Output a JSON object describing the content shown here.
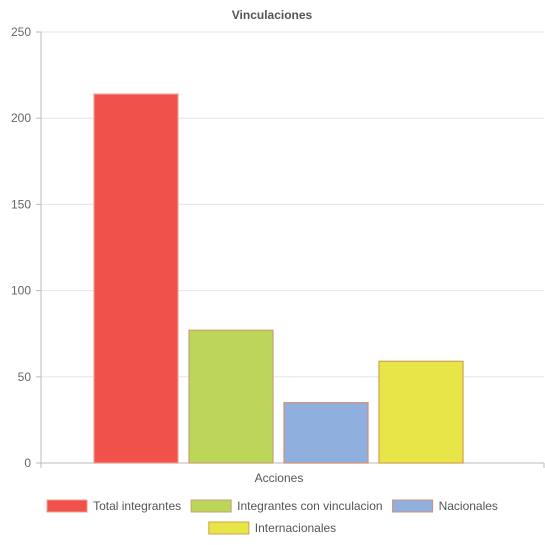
{
  "chart_data": {
    "type": "bar",
    "title": "Vinculaciones",
    "xlabel": "Acciones",
    "ylabel": "",
    "ylim": [
      0,
      250
    ],
    "yticks": [
      0,
      50,
      100,
      150,
      200,
      250
    ],
    "grid": true,
    "legend_position": "bottom",
    "categories": [
      "Acciones"
    ],
    "series": [
      {
        "name": "Total integrantes",
        "values": [
          214
        ],
        "color": "#f0514a",
        "border": "#e8a090"
      },
      {
        "name": "Integrantes con vinculacion",
        "values": [
          77
        ],
        "color": "#bcd65a",
        "border": "#c9a070"
      },
      {
        "name": "Nacionales",
        "values": [
          35
        ],
        "color": "#8fb0de",
        "border": "#d09070"
      },
      {
        "name": "Internacionales",
        "values": [
          59
        ],
        "color": "#e8e549",
        "border": "#d0a050"
      }
    ]
  }
}
